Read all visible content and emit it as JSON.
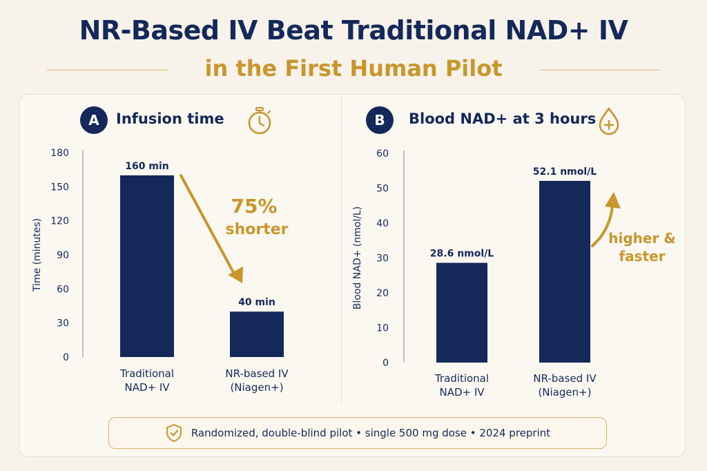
{
  "title": "NR-Based IV Beat Traditional NAD+ IV",
  "subtitle": "in the First Human Pilot",
  "colors": {
    "bar": "#14285a",
    "accent": "#c9962c"
  },
  "panels": [
    {
      "badge": "A",
      "title": "Infusion time",
      "icon": "stopwatch-icon"
    },
    {
      "badge": "B",
      "title": "Blood NAD+ at 3 hours",
      "icon": "plus-drop-icon"
    }
  ],
  "chart_data": [
    {
      "type": "bar",
      "title": "Infusion time",
      "categories": [
        "Traditional\nNAD+ IV",
        "NR-based IV\n(Niagen+)"
      ],
      "values": [
        160,
        40
      ],
      "data_labels": [
        "160 min",
        "40 min"
      ],
      "xlabel": "",
      "ylabel": "Time (minutes)",
      "ylim": [
        0,
        180
      ],
      "yticks": [
        0,
        30,
        60,
        90,
        120,
        150,
        180
      ],
      "annotation": "75%\nshorter"
    },
    {
      "type": "bar",
      "title": "Blood NAD+ at 3 hours",
      "categories": [
        "Traditional\nNAD+ IV",
        "NR-based IV\n(Niagen+)"
      ],
      "values": [
        28.6,
        52.1
      ],
      "data_labels": [
        "28.6 nmol/L",
        "52.1 nmol/L"
      ],
      "xlabel": "",
      "ylabel": "Blood NAD+ (nmol/L)",
      "ylim": [
        0,
        60
      ],
      "yticks": [
        0,
        10,
        20,
        30,
        40,
        50,
        60
      ],
      "annotation": "higher &\nfaster"
    }
  ],
  "footer": {
    "icon": "shield-check-icon",
    "text": "Randomized, double-blind pilot  •  single 500 mg dose  •  2024 preprint"
  }
}
